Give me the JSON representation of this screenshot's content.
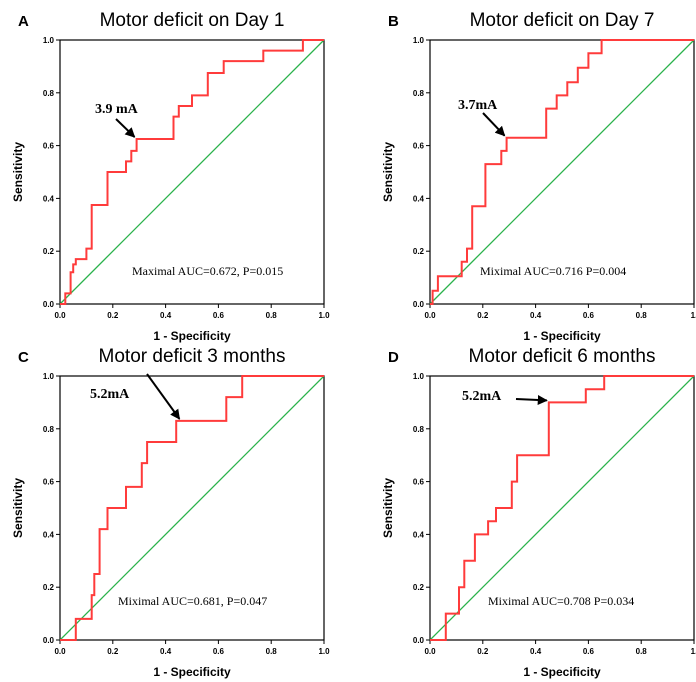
{
  "chart_data": [
    {
      "type": "line",
      "panel": "A",
      "title": "Motor deficit on Day 1",
      "xlabel": "1 - Specificity",
      "ylabel": "Sensitivity",
      "xlim": [
        0,
        1
      ],
      "ylim": [
        0,
        1
      ],
      "x_ticks": [
        "0.0",
        "0.2",
        "0.4",
        "0.6",
        "0.8",
        "1.0"
      ],
      "y_ticks": [
        "0.0",
        "0.2",
        "0.4",
        "0.6",
        "0.8",
        "1.0"
      ],
      "series": [
        {
          "color": "#ff3b3b",
          "x": [
            0,
            0.02,
            0.02,
            0.04,
            0.04,
            0.05,
            0.05,
            0.06,
            0.06,
            0.1,
            0.1,
            0.12,
            0.12,
            0.18,
            0.18,
            0.25,
            0.25,
            0.27,
            0.27,
            0.29,
            0.29,
            0.43,
            0.43,
            0.45,
            0.45,
            0.5,
            0.5,
            0.56,
            0.56,
            0.62,
            0.62,
            0.77,
            0.77,
            0.92,
            0.92,
            0.94,
            0.94,
            1.0
          ],
          "y": [
            0,
            0,
            0.04,
            0.04,
            0.12,
            0.12,
            0.15,
            0.15,
            0.17,
            0.17,
            0.21,
            0.21,
            0.375,
            0.375,
            0.5,
            0.5,
            0.54,
            0.54,
            0.58,
            0.58,
            0.625,
            0.625,
            0.71,
            0.71,
            0.75,
            0.75,
            0.79,
            0.79,
            0.875,
            0.875,
            0.92,
            0.92,
            0.96,
            0.96,
            1.0,
            1.0,
            1.0,
            1.0
          ]
        },
        {
          "color": "#2bb24c",
          "x": [
            0,
            1
          ],
          "y": [
            0,
            1
          ]
        }
      ],
      "annotation": {
        "text": "3.9 mA",
        "x": 0.29,
        "y": 0.625
      },
      "auc_text": "Maximal AUC=0.672, P=0.015"
    },
    {
      "type": "line",
      "panel": "B",
      "title": "Motor deficit on Day 7",
      "xlabel": "1 - Specificity",
      "ylabel": "Sensitivity",
      "xlim": [
        0,
        1
      ],
      "ylim": [
        0,
        1
      ],
      "x_ticks": [
        "0.0",
        "0.2",
        "0.4",
        "0.6",
        "0.8",
        "1."
      ],
      "y_ticks": [
        "0.0",
        "0.2",
        "0.4",
        "0.6",
        "0.8",
        "1.0"
      ],
      "series": [
        {
          "color": "#ff3b3b",
          "x": [
            0,
            0.01,
            0.01,
            0.03,
            0.03,
            0.12,
            0.12,
            0.14,
            0.14,
            0.16,
            0.16,
            0.21,
            0.21,
            0.27,
            0.27,
            0.29,
            0.29,
            0.44,
            0.44,
            0.48,
            0.48,
            0.52,
            0.52,
            0.56,
            0.56,
            0.6,
            0.6,
            0.65,
            0.65,
            0.75,
            0.75,
            1.0
          ],
          "y": [
            0,
            0,
            0.05,
            0.05,
            0.105,
            0.105,
            0.16,
            0.16,
            0.21,
            0.21,
            0.37,
            0.37,
            0.53,
            0.53,
            0.58,
            0.58,
            0.63,
            0.63,
            0.74,
            0.74,
            0.79,
            0.79,
            0.84,
            0.84,
            0.895,
            0.895,
            0.95,
            0.95,
            1.0,
            1.0,
            1.0,
            1.0
          ]
        },
        {
          "color": "#2bb24c",
          "x": [
            0,
            1
          ],
          "y": [
            0,
            1
          ]
        }
      ],
      "annotation": {
        "text": "3.7mA",
        "x": 0.29,
        "y": 0.63
      },
      "auc_text": "Miximal AUC=0.716 P=0.004"
    },
    {
      "type": "line",
      "panel": "C",
      "title": "Motor deficit 3 months",
      "xlabel": "1 - Specificity",
      "ylabel": "Sensitivity",
      "xlim": [
        0,
        1
      ],
      "ylim": [
        0,
        1
      ],
      "x_ticks": [
        "0.0",
        "0.2",
        "0.4",
        "0.6",
        "0.8",
        "1.0"
      ],
      "y_ticks": [
        "0.0",
        "0.2",
        "0.4",
        "0.6",
        "0.8",
        "1.0"
      ],
      "series": [
        {
          "color": "#ff3b3b",
          "x": [
            0,
            0.06,
            0.06,
            0.12,
            0.12,
            0.13,
            0.13,
            0.15,
            0.15,
            0.18,
            0.18,
            0.25,
            0.25,
            0.31,
            0.31,
            0.33,
            0.33,
            0.44,
            0.44,
            0.46,
            0.46,
            0.63,
            0.63,
            0.69,
            0.69,
            0.77,
            0.77,
            1.0
          ],
          "y": [
            0,
            0,
            0.08,
            0.08,
            0.17,
            0.17,
            0.25,
            0.25,
            0.42,
            0.42,
            0.5,
            0.5,
            0.58,
            0.58,
            0.67,
            0.67,
            0.75,
            0.75,
            0.83,
            0.83,
            0.83,
            0.83,
            0.92,
            0.92,
            1.0,
            1.0,
            1.0,
            1.0
          ]
        },
        {
          "color": "#2bb24c",
          "x": [
            0,
            1
          ],
          "y": [
            0,
            1
          ]
        }
      ],
      "annotation": {
        "text": "5.2mA",
        "x": 0.46,
        "y": 0.83
      },
      "auc_text": "Miximal AUC=0.681, P=0.047"
    },
    {
      "type": "line",
      "panel": "D",
      "title": "Motor deficit 6 months",
      "xlabel": "1 - Specificity",
      "ylabel": "Sensitivity",
      "xlim": [
        0,
        1
      ],
      "ylim": [
        0,
        1
      ],
      "x_ticks": [
        "0.0",
        "0.2",
        "0.4",
        "0.6",
        "0.8",
        "1."
      ],
      "y_ticks": [
        "0.0",
        "0.2",
        "0.4",
        "0.6",
        "0.8",
        "1.0"
      ],
      "series": [
        {
          "color": "#ff3b3b",
          "x": [
            0,
            0.06,
            0.06,
            0.11,
            0.11,
            0.13,
            0.13,
            0.17,
            0.17,
            0.22,
            0.22,
            0.25,
            0.25,
            0.31,
            0.31,
            0.33,
            0.33,
            0.45,
            0.45,
            0.59,
            0.59,
            0.66,
            0.66,
            1.0
          ],
          "y": [
            0,
            0,
            0.1,
            0.1,
            0.2,
            0.2,
            0.3,
            0.3,
            0.4,
            0.4,
            0.45,
            0.45,
            0.5,
            0.5,
            0.6,
            0.6,
            0.7,
            0.7,
            0.9,
            0.9,
            0.95,
            0.95,
            1.0,
            1.0
          ]
        },
        {
          "color": "#2bb24c",
          "x": [
            0,
            1
          ],
          "y": [
            0,
            1
          ]
        }
      ],
      "annotation": {
        "text": "5.2mA",
        "x": 0.45,
        "y": 0.9
      },
      "auc_text": "Miximal AUC=0.708 P=0.034"
    }
  ]
}
